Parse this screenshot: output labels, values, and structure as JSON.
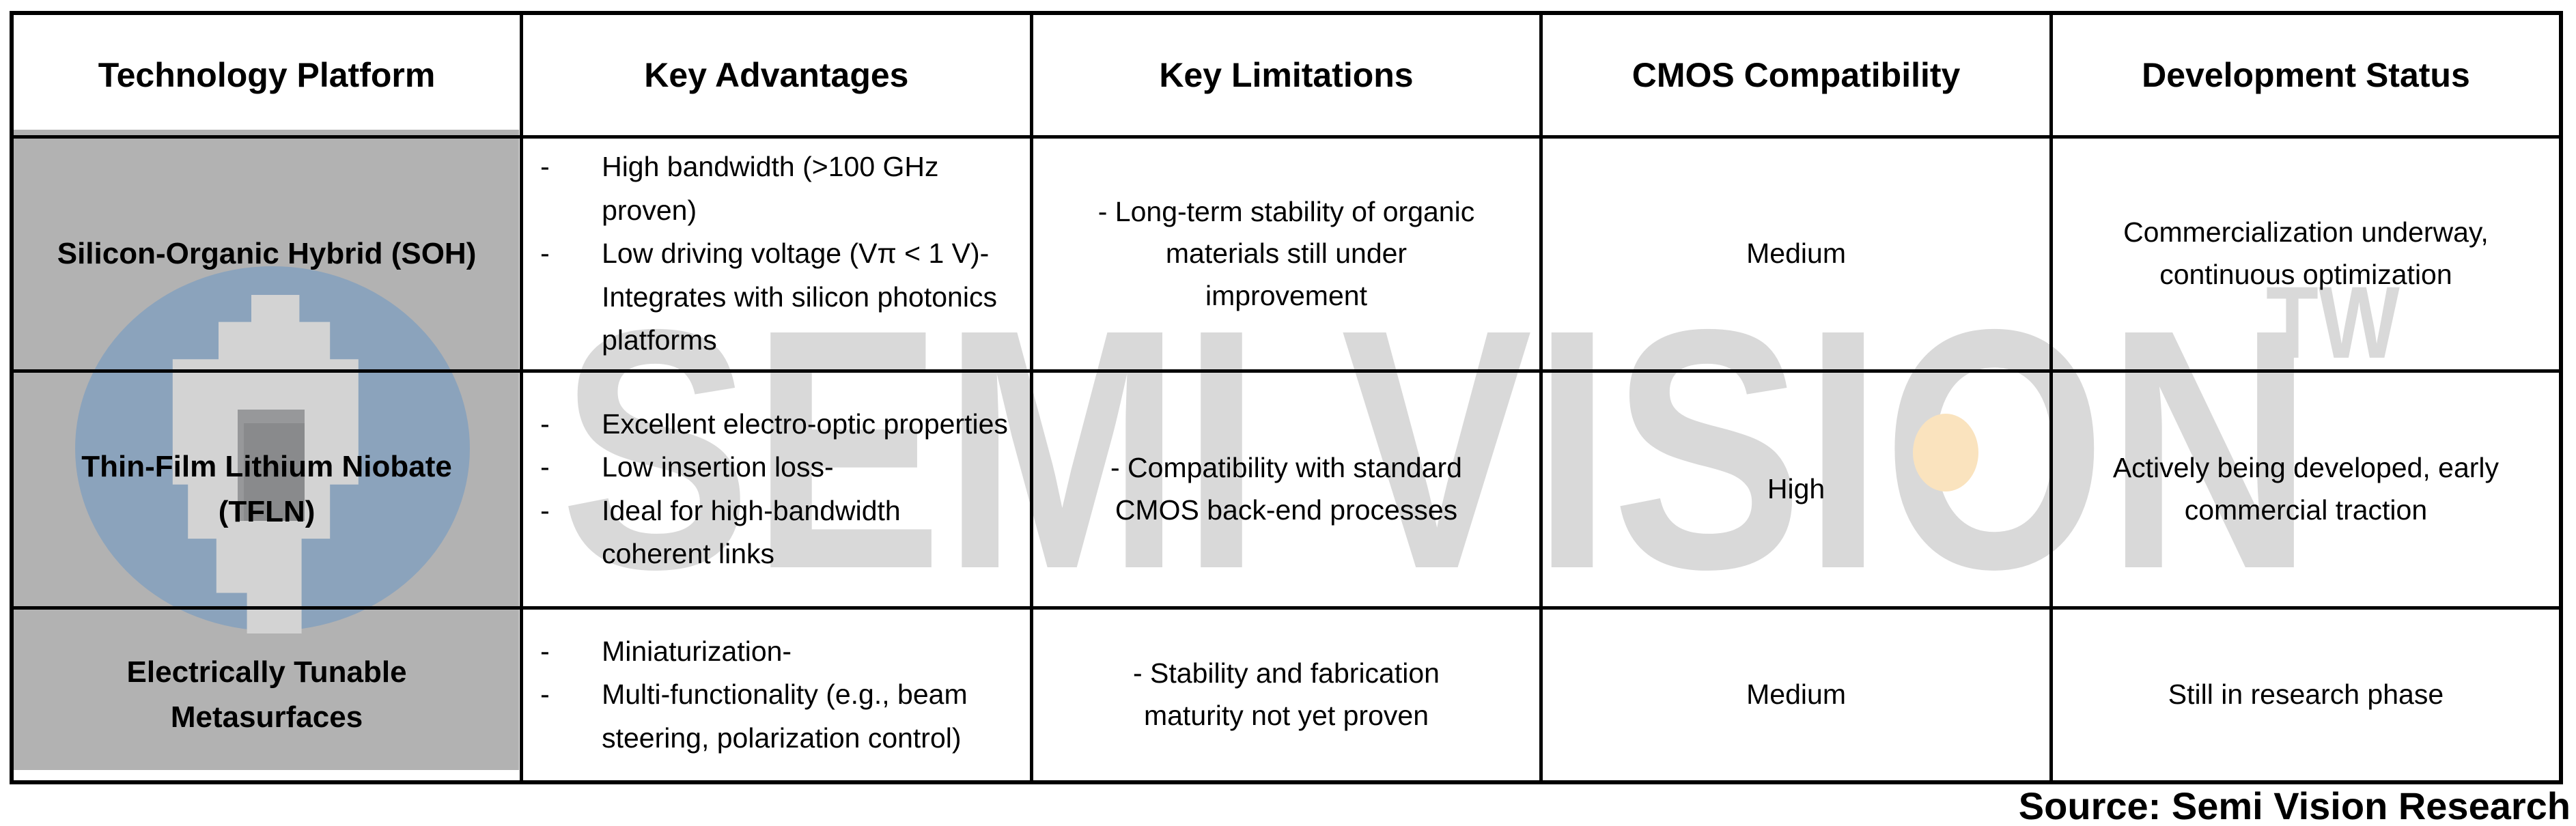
{
  "table": {
    "headers": [
      "Technology Platform",
      "Key Advantages",
      "Key Limitations",
      "CMOS Compatibility",
      "Development Status"
    ],
    "rows": [
      {
        "platform": "Silicon-Organic Hybrid (SOH)",
        "advantages": [
          "High bandwidth (>100 GHz proven)",
          "Low driving voltage (Vπ < 1 V)- Integrates with silicon photonics platforms"
        ],
        "limitations": "- Long-term stability of organic\nmaterials still under\nimprovement",
        "cmos": "Medium",
        "status": "Commercialization underway,\ncontinuous optimization"
      },
      {
        "platform": "Thin-Film Lithium Niobate\n(TFLN)",
        "advantages": [
          "Excellent electro-optic properties",
          "Low insertion loss-",
          "Ideal for high-bandwidth coherent links"
        ],
        "limitations": "- Compatibility with standard\nCMOS back-end processes",
        "cmos": "High",
        "status": "Actively being developed, early\ncommercial traction"
      },
      {
        "platform": "Electrically Tunable\nMetasurfaces",
        "advantages": [
          "Miniaturization-",
          "Multi-functionality (e.g., beam steering, polarization control)"
        ],
        "limitations": "- Stability and fabrication\nmaturity not yet proven",
        "cmos": "Medium",
        "status": "Still in research phase"
      }
    ]
  },
  "watermark": {
    "brand": "SEMI VISION",
    "region": "TW"
  },
  "source_credit": "Source: Semi Vision Research",
  "colors": {
    "header_blue": "#5ec1ef",
    "platform_gray": "#b2b2b2",
    "border_black": "#000000",
    "watermark_gray": "#d9d9d9",
    "logo_circle_blue": "#8ba3bc",
    "logo_blob_gray": "#d3d3d3",
    "logo_core_gray": "#898a8c",
    "egg_peach": "#fae3be"
  }
}
